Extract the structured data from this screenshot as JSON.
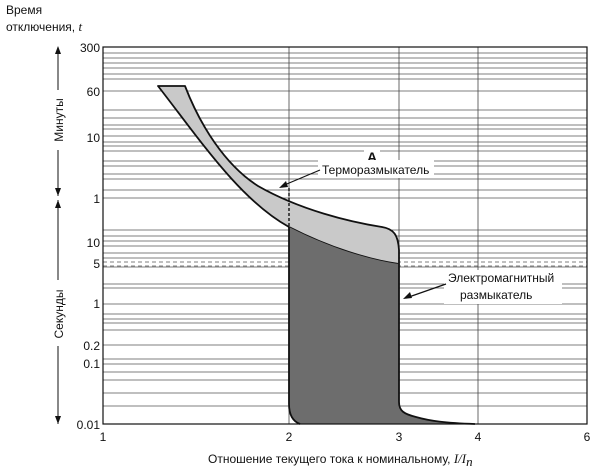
{
  "chart_data": {
    "type": "area",
    "ylabel_lines": [
      "Время",
      "отключения, "
    ],
    "ylabel_var": "t",
    "xlabel": "Отношение текущего тока к номинальному, ",
    "xlabel_var": "I/I",
    "xlabel_sub": "п",
    "annotation": "A",
    "scale": "logarithmic",
    "x_ticks": [
      "1",
      "2",
      "3",
      "4",
      "6"
    ],
    "section_minutes": "Минуты",
    "section_seconds": "Секунды",
    "minute_ticks": [
      "300",
      "60",
      "10",
      "1"
    ],
    "second_ticks": [
      "10",
      "5",
      "1",
      "0.2",
      "0.1",
      "0.01"
    ],
    "series": [
      {
        "name": "Терморазмыкатель",
        "label": "Терморазмыкатель",
        "fill": "#c9c9c9",
        "note": "time-current band (upper region)"
      },
      {
        "name": "Электромагнитный размыкатель",
        "label_lines": [
          "Электромагнитный",
          "размыкатель"
        ],
        "fill": "#6d6d6d",
        "note": "time-current band (lower region)"
      }
    ],
    "grid": true
  }
}
